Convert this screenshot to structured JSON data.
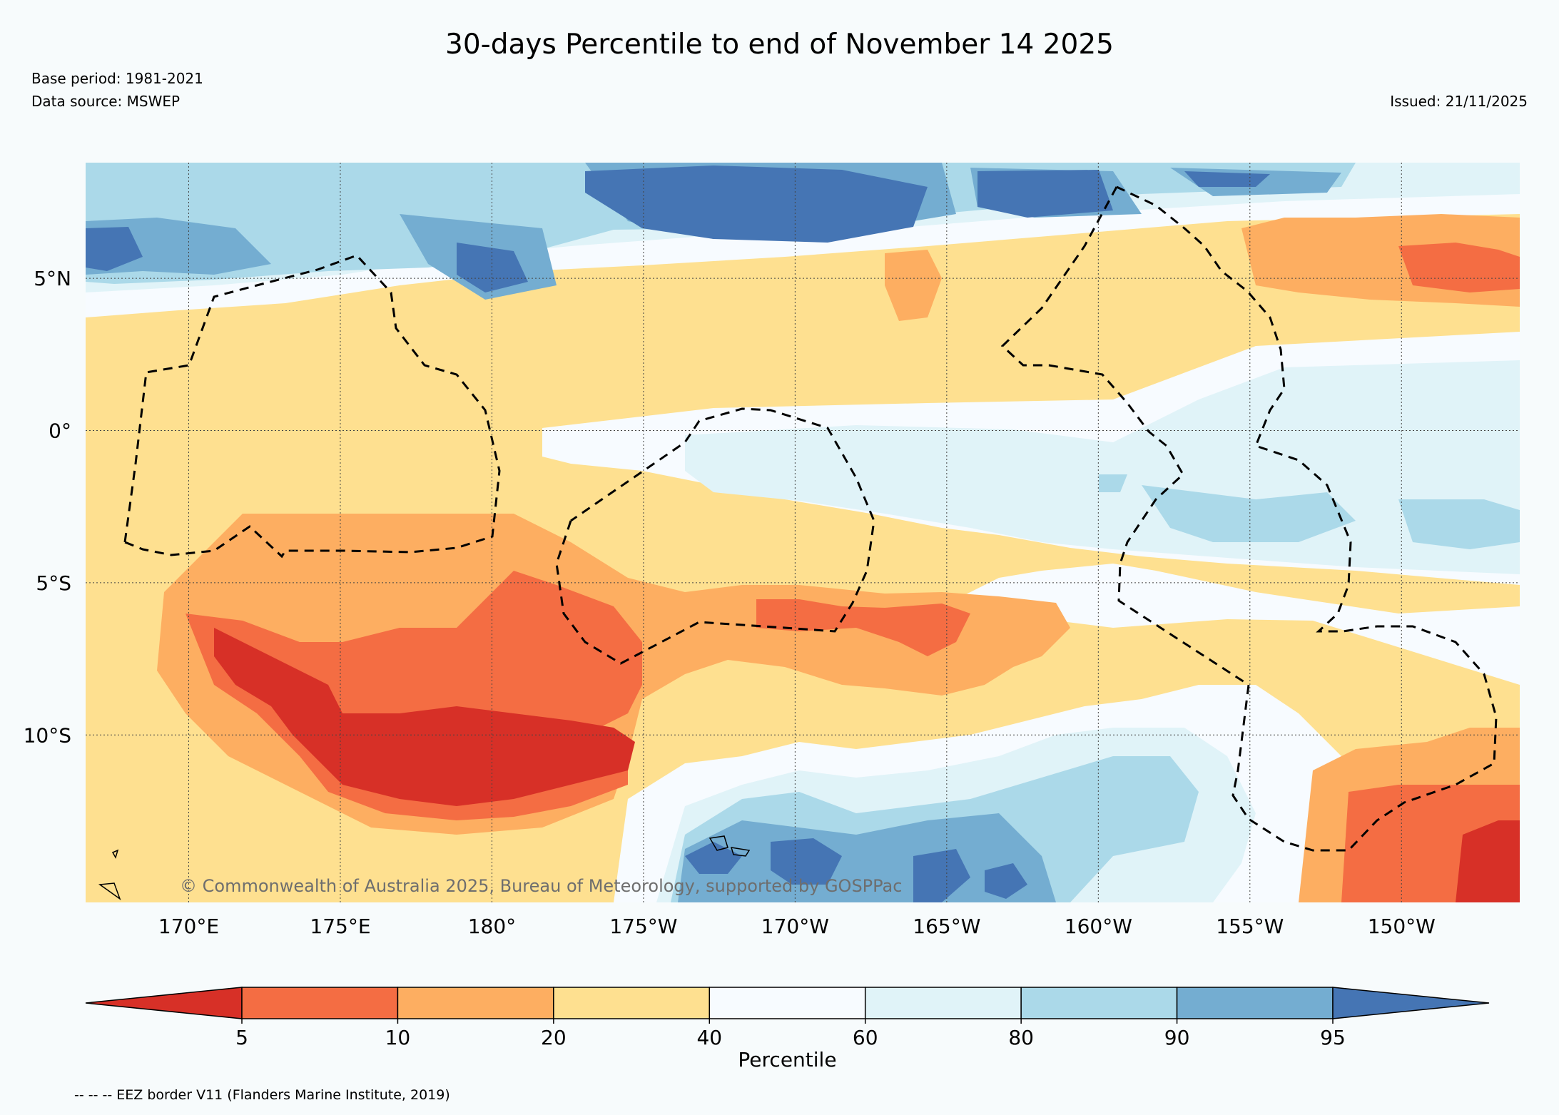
{
  "title": "30-days Percentile to end of November 14 2025",
  "base_period": "Base period: 1981-2021",
  "data_source": "Data source: MSWEP",
  "issued": "Issued: 21/11/2025",
  "copyright": "© Commonwealth of Australia 2025, Bureau of Meteorology, supported by GOSPPac",
  "footer": "-- -- -- EEZ border V11 (Flanders Marine Institute, 2019)",
  "map": {
    "lon_ticks": [
      {
        "label": "170°E",
        "lon": 170
      },
      {
        "label": "175°E",
        "lon": 175
      },
      {
        "label": "180°",
        "lon": 180
      },
      {
        "label": "175°W",
        "lon": 185
      },
      {
        "label": "170°W",
        "lon": 190
      },
      {
        "label": "165°W",
        "lon": 195
      },
      {
        "label": "160°W",
        "lon": 200
      },
      {
        "label": "155°W",
        "lon": 205
      },
      {
        "label": "150°W",
        "lon": 210
      }
    ],
    "lat_ticks": [
      {
        "label": "5°N",
        "lat": 5
      },
      {
        "label": "0°",
        "lat": 0
      },
      {
        "label": "5°S",
        "lat": -5
      },
      {
        "label": "10°S",
        "lat": -10
      }
    ],
    "lon_range": [
      166.6,
      213.9
    ],
    "lat_range": [
      -15.5,
      8.8
    ]
  },
  "colorbar": {
    "label": "Percentile",
    "ticks": [
      "5",
      "10",
      "20",
      "40",
      "60",
      "80",
      "90",
      "95"
    ],
    "colors": [
      "#d73027",
      "#f46d43",
      "#fdae61",
      "#fee090",
      "#f7fbff",
      "#e0f3f8",
      "#abd9e9",
      "#74add1",
      "#4575b4"
    ]
  }
}
